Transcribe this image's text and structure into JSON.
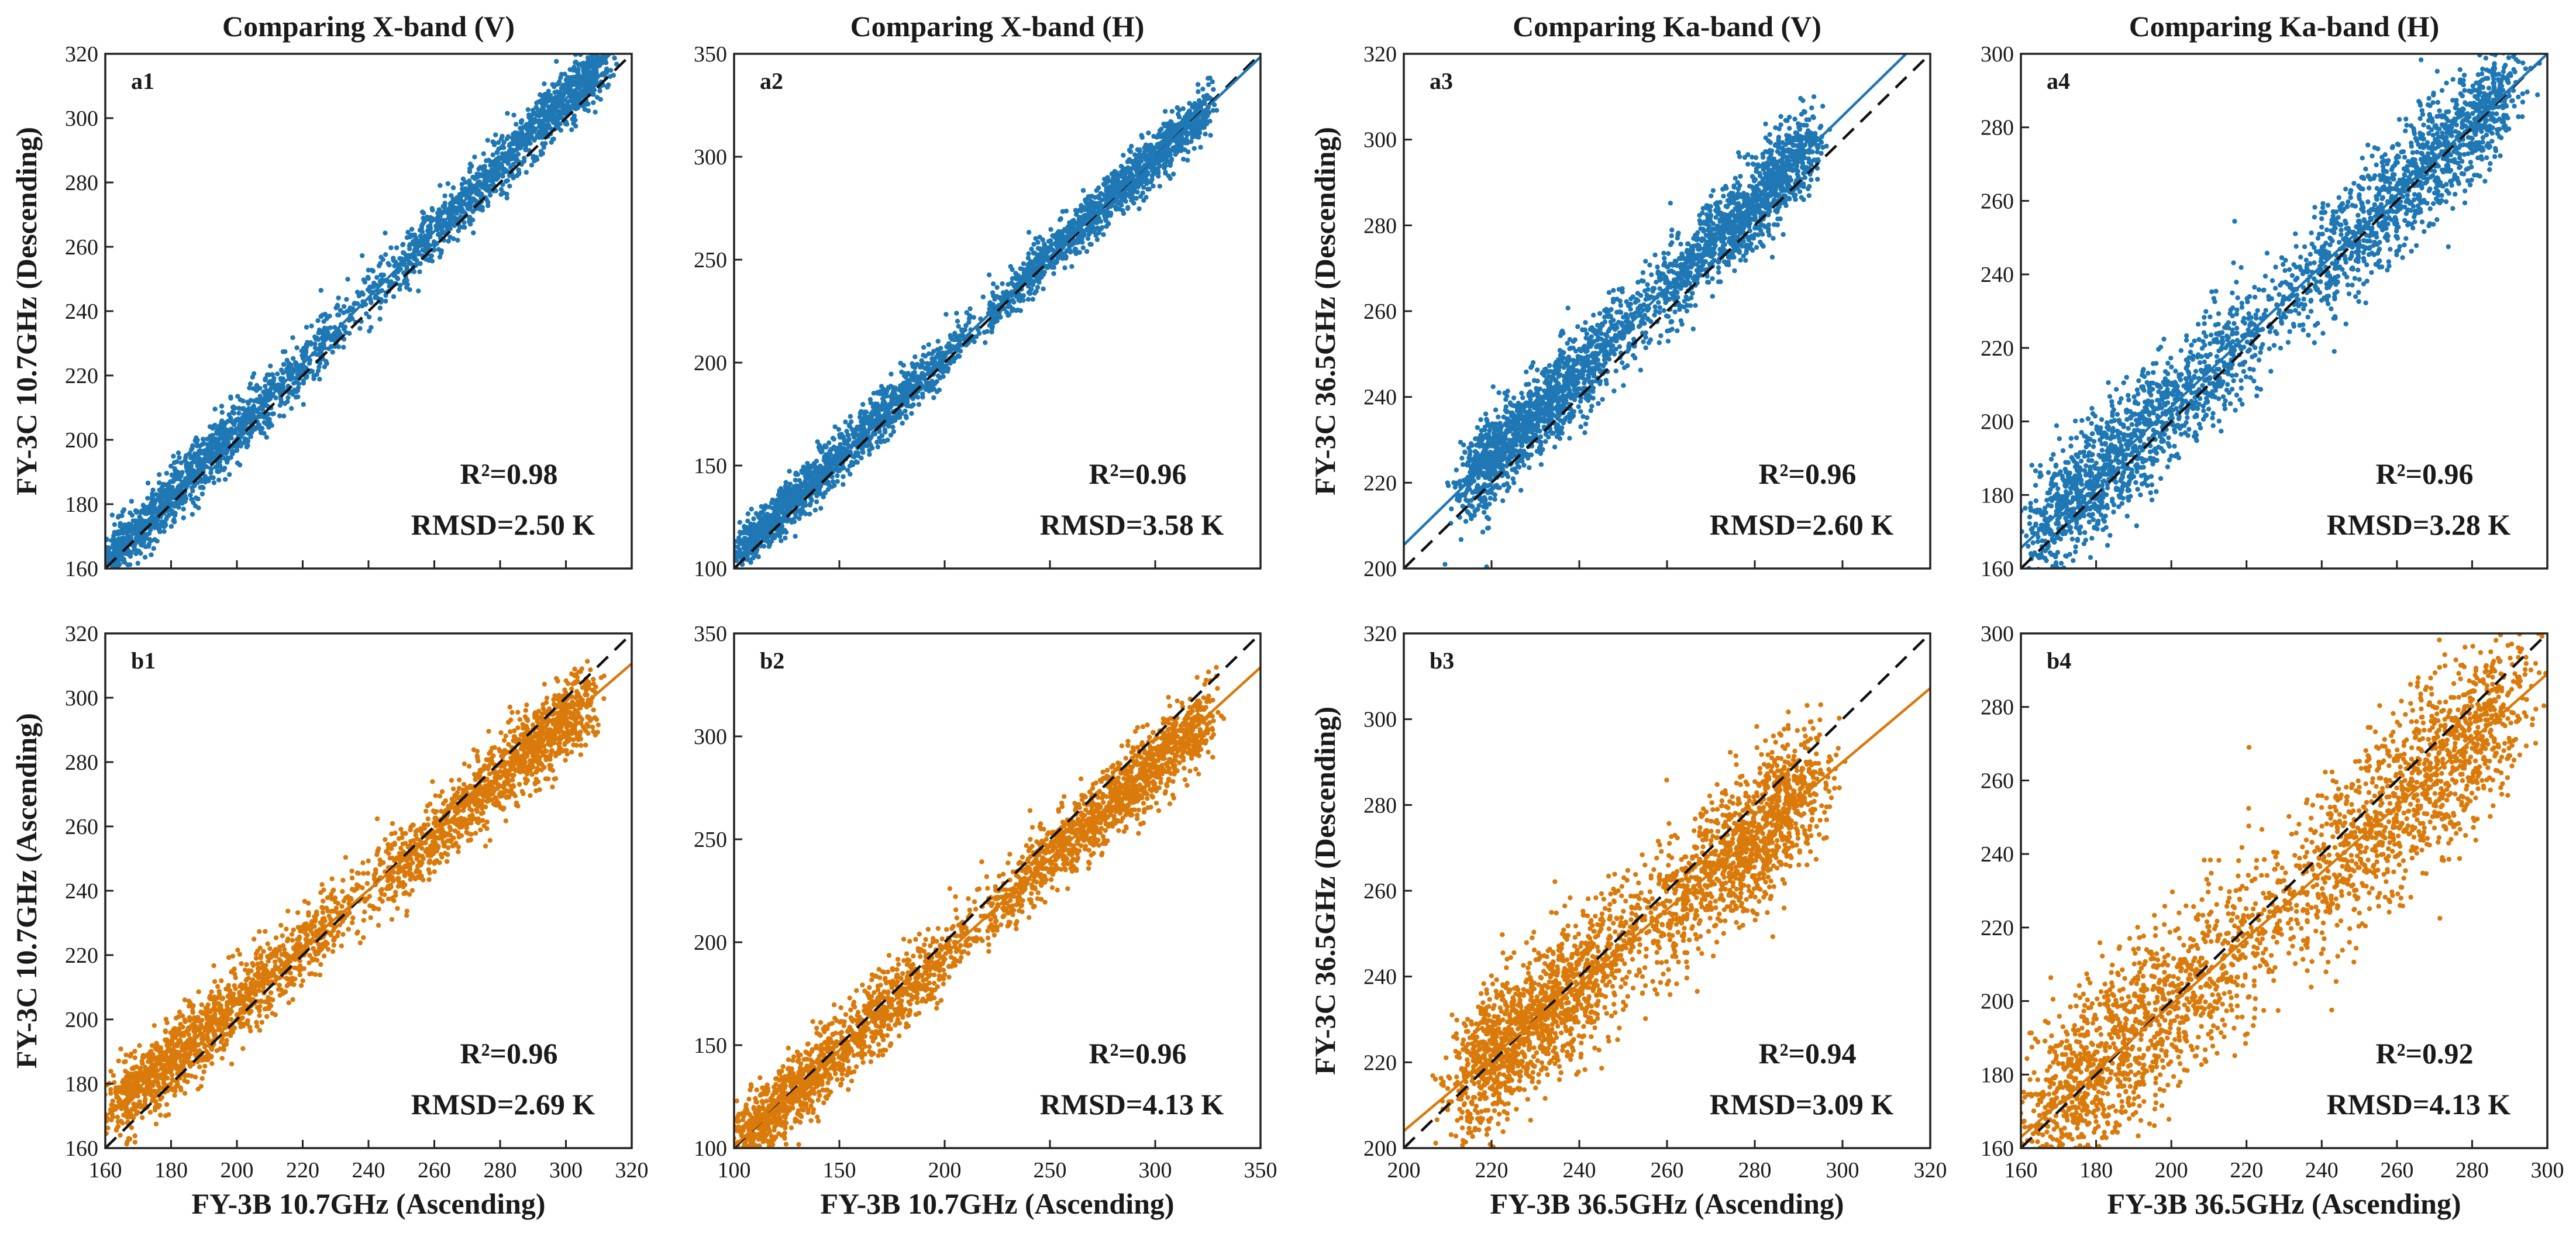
{
  "colors": {
    "top_row": "#1f77b4",
    "bottom_row": "#d97a0b",
    "identity_line": "#111111",
    "axes": "#222222"
  },
  "chart_data": [
    {
      "id": "a1",
      "type": "scatter",
      "title": "Comparing X-band (V)",
      "ylabel": "FY-3C 10.7GHz (Descending)",
      "xlabel": "",
      "xlim": [
        160,
        320
      ],
      "ylim": [
        160,
        320
      ],
      "xticks": [],
      "yticks": [
        160,
        180,
        200,
        220,
        240,
        260,
        280,
        300,
        320
      ],
      "xtick_labels": [],
      "ytick_labels": [
        "160",
        "180",
        "200",
        "220",
        "240",
        "260",
        "280",
        "300",
        "320"
      ],
      "series_color": "#1f77b4",
      "scatter_x_range": [
        160,
        312
      ],
      "scatter_spread": 4.5,
      "fit_line": {
        "slope": 1.03,
        "intercept": -3.0
      },
      "identity_line": true,
      "stats": {
        "r2": "R²=0.98",
        "rmsd": "RMSD=2.50 K"
      }
    },
    {
      "id": "a2",
      "type": "scatter",
      "title": "Comparing X-band (H)",
      "ylabel": "",
      "xlabel": "",
      "xlim": [
        100,
        350
      ],
      "ylim": [
        100,
        350
      ],
      "xticks": [],
      "yticks": [
        100,
        150,
        200,
        250,
        300,
        350
      ],
      "xtick_labels": [],
      "ytick_labels": [
        "100",
        "150",
        "200",
        "250",
        "300",
        "350"
      ],
      "series_color": "#1f77b4",
      "scatter_x_range": [
        102,
        325
      ],
      "scatter_spread": 6,
      "fit_line": {
        "slope": 0.97,
        "intercept": 9.0
      },
      "identity_line": true,
      "stats": {
        "r2": "R²=0.96",
        "rmsd": "RMSD=3.58 K"
      }
    },
    {
      "id": "a3",
      "type": "scatter",
      "title": "Comparing Ka-band (V)",
      "ylabel": "FY-3C 36.5GHz (Descending)",
      "xlabel": "",
      "xlim": [
        200,
        320
      ],
      "ylim": [
        200,
        320
      ],
      "xticks": [],
      "yticks": [
        200,
        220,
        240,
        260,
        280,
        300,
        320
      ],
      "xtick_labels": [],
      "ytick_labels": [
        "200",
        "220",
        "240",
        "260",
        "280",
        "300",
        "320"
      ],
      "series_color": "#1f77b4",
      "scatter_x_range": [
        215,
        292
      ],
      "scatter_spread": 5,
      "fit_line": {
        "slope": 1.0,
        "intercept": 5.5
      },
      "identity_line": true,
      "stats": {
        "r2": "R²=0.96",
        "rmsd": "RMSD=2.60 K"
      }
    },
    {
      "id": "a4",
      "type": "scatter",
      "title": "Comparing Ka-band (H)",
      "ylabel": "",
      "xlabel": "",
      "xlim": [
        160,
        300
      ],
      "ylim": [
        160,
        300
      ],
      "xticks": [],
      "yticks": [
        160,
        180,
        200,
        220,
        240,
        260,
        280,
        300
      ],
      "xtick_labels": [],
      "ytick_labels": [
        "160",
        "180",
        "200",
        "220",
        "240",
        "260",
        "280",
        "300"
      ],
      "series_color": "#1f77b4",
      "scatter_x_range": [
        165,
        289
      ],
      "scatter_spread": 8,
      "fit_line": {
        "slope": 0.96,
        "intercept": 12.0
      },
      "identity_line": true,
      "stats": {
        "r2": "R²=0.96",
        "rmsd": "RMSD=3.28 K"
      }
    },
    {
      "id": "b1",
      "type": "scatter",
      "title": "",
      "ylabel": "FY-3C 10.7GHz (Ascending)",
      "xlabel": "FY-3B 10.7GHz (Ascending)",
      "xlim": [
        160,
        320
      ],
      "ylim": [
        160,
        320
      ],
      "xticks": [
        160,
        180,
        200,
        220,
        240,
        260,
        280,
        300,
        320
      ],
      "yticks": [
        160,
        180,
        200,
        220,
        240,
        260,
        280,
        300,
        320
      ],
      "xtick_labels": [
        "160",
        "180",
        "200",
        "220",
        "240",
        "260",
        "280",
        "300",
        "320"
      ],
      "ytick_labels": [
        "160",
        "180",
        "200",
        "220",
        "240",
        "260",
        "280",
        "300",
        "320"
      ],
      "series_color": "#d97a0b",
      "scatter_x_range": [
        163,
        306
      ],
      "scatter_spread": 6,
      "fit_line": {
        "slope": 0.88,
        "intercept": 29.0
      },
      "identity_line": true,
      "stats": {
        "r2": "R²=0.96",
        "rmsd": "RMSD=2.69 K"
      }
    },
    {
      "id": "b2",
      "type": "scatter",
      "title": "",
      "ylabel": "",
      "xlabel": "FY-3B 10.7GHz (Ascending)",
      "xlim": [
        100,
        350
      ],
      "ylim": [
        100,
        350
      ],
      "xticks": [
        100,
        150,
        200,
        250,
        300,
        350
      ],
      "yticks": [
        100,
        150,
        200,
        250,
        300,
        350
      ],
      "xtick_labels": [
        "100",
        "150",
        "200",
        "250",
        "300",
        "350"
      ],
      "ytick_labels": [
        "100",
        "150",
        "200",
        "250",
        "300",
        "350"
      ],
      "series_color": "#d97a0b",
      "scatter_x_range": [
        102,
        325
      ],
      "scatter_spread": 9,
      "fit_line": {
        "slope": 0.93,
        "intercept": 8.0
      },
      "identity_line": true,
      "stats": {
        "r2": "R²=0.96",
        "rmsd": "RMSD=4.13 K"
      }
    },
    {
      "id": "b3",
      "type": "scatter",
      "title": "",
      "ylabel": "FY-3C 36.5GHz (Descending)",
      "xlabel": "FY-3B 36.5GHz (Ascending)",
      "xlim": [
        200,
        320
      ],
      "ylim": [
        200,
        320
      ],
      "xticks": [
        200,
        220,
        240,
        260,
        280,
        300,
        320
      ],
      "yticks": [
        200,
        220,
        240,
        260,
        280,
        300,
        320
      ],
      "xtick_labels": [
        "200",
        "220",
        "240",
        "260",
        "280",
        "300",
        "320"
      ],
      "ytick_labels": [
        "200",
        "220",
        "240",
        "260",
        "280",
        "300",
        "320"
      ],
      "series_color": "#d97a0b",
      "scatter_x_range": [
        215,
        292
      ],
      "scatter_spread": 8,
      "fit_line": {
        "slope": 0.86,
        "intercept": 32.0
      },
      "identity_line": true,
      "stats": {
        "r2": "R²=0.94",
        "rmsd": "RMSD=3.09 K"
      }
    },
    {
      "id": "b4",
      "type": "scatter",
      "title": "",
      "ylabel": "",
      "xlabel": "FY-3B 36.5GHz (Ascending)",
      "xlim": [
        160,
        300
      ],
      "ylim": [
        160,
        300
      ],
      "xticks": [
        160,
        180,
        200,
        220,
        240,
        260,
        280,
        300
      ],
      "yticks": [
        160,
        180,
        200,
        220,
        240,
        260,
        280,
        300
      ],
      "xtick_labels": [
        "160",
        "180",
        "200",
        "220",
        "240",
        "260",
        "280",
        "300"
      ],
      "ytick_labels": [
        "160",
        "180",
        "200",
        "220",
        "240",
        "260",
        "280",
        "300"
      ],
      "series_color": "#d97a0b",
      "scatter_x_range": [
        165,
        289
      ],
      "scatter_spread": 12,
      "fit_line": {
        "slope": 0.9,
        "intercept": 19.0
      },
      "identity_line": true,
      "stats": {
        "r2": "R²=0.92",
        "rmsd": "RMSD=4.13 K"
      }
    }
  ]
}
